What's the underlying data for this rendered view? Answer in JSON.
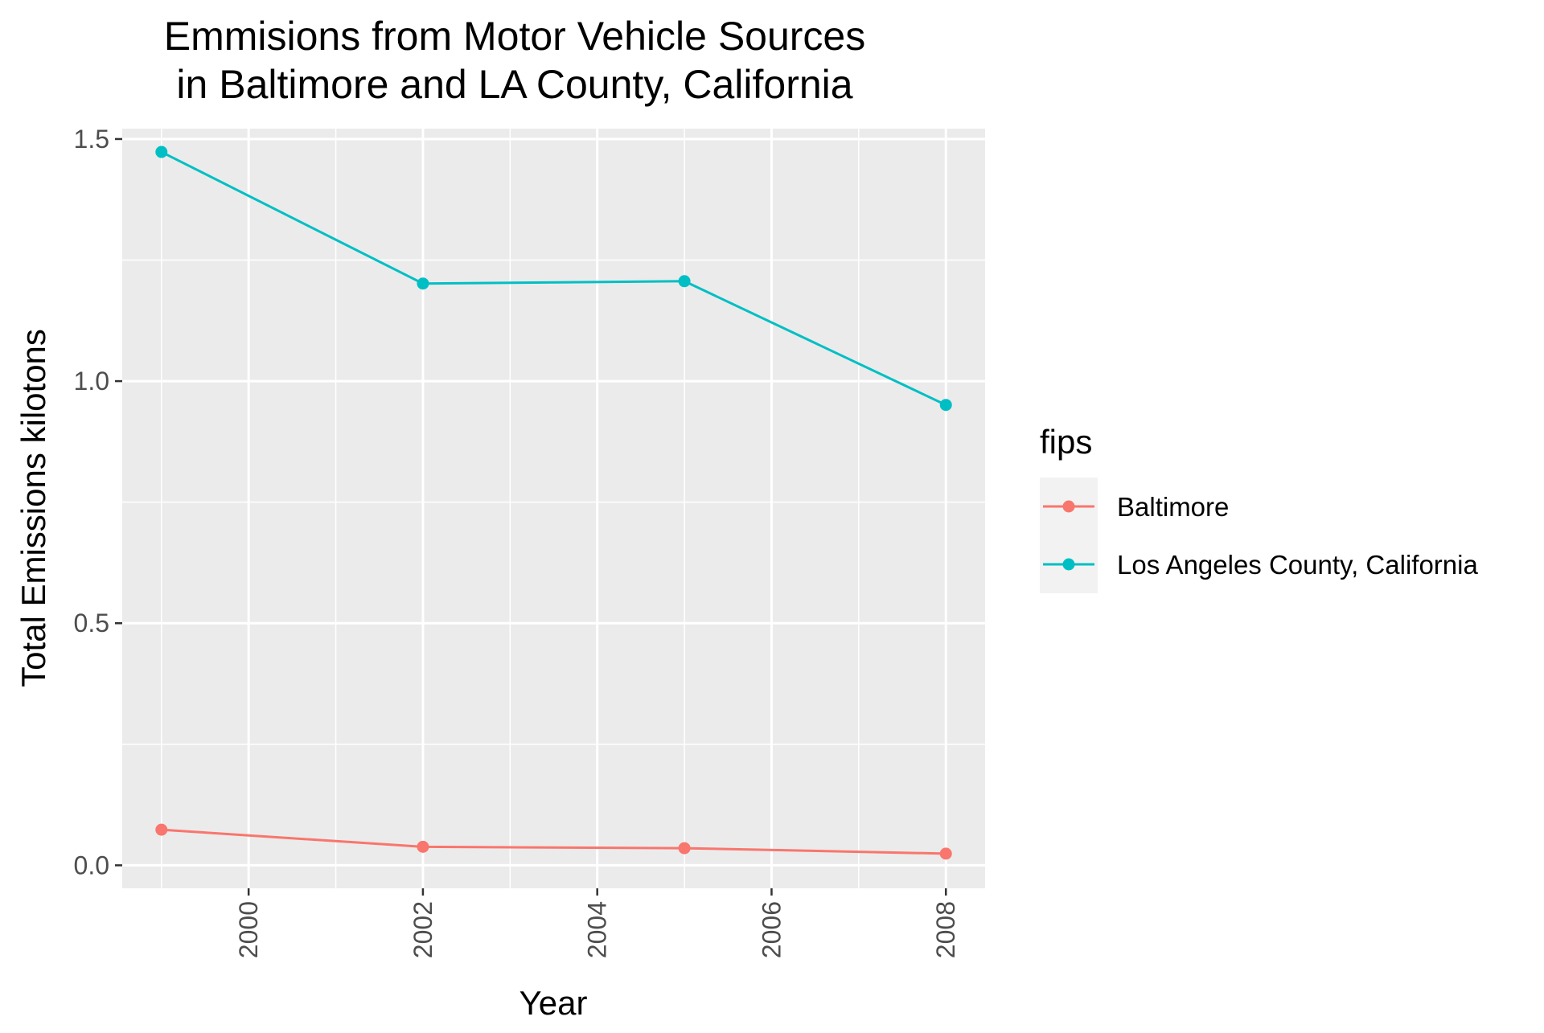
{
  "chart_data": {
    "type": "line",
    "title_lines": [
      "Emmisions from Motor Vehicle Sources",
      "in Baltimore and LA County, California"
    ],
    "xlabel": "Year",
    "ylabel": "Total Emissions kilotons",
    "x": [
      1999,
      2002,
      2005,
      2008
    ],
    "xlim": [
      1998.55,
      2008.45
    ],
    "ylim": [
      -0.0475,
      1.5215
    ],
    "x_ticks": [
      2000,
      2002,
      2004,
      2006,
      2008
    ],
    "x_tick_labels": [
      "2000",
      "2002",
      "2004",
      "2006",
      "2008"
    ],
    "y_ticks": [
      0.0,
      0.5,
      1.0,
      1.5
    ],
    "y_tick_labels": [
      "0.0",
      "0.5",
      "1.0",
      "1.5"
    ],
    "grid": true,
    "x_tick_labels_rotated": true,
    "legend": {
      "title": "fips",
      "placement": "right"
    },
    "series": [
      {
        "name": "Baltimore",
        "color": "#F8766D",
        "values": [
          0.0735,
          0.0382,
          0.0354,
          0.0241
        ]
      },
      {
        "name": "Los Angeles County, California",
        "color": "#00BFC4",
        "values": [
          1.4733,
          1.2015,
          1.2064,
          0.9508
        ]
      }
    ],
    "panel_background": "#EBEBEB",
    "grid_color": "#FFFFFF"
  }
}
